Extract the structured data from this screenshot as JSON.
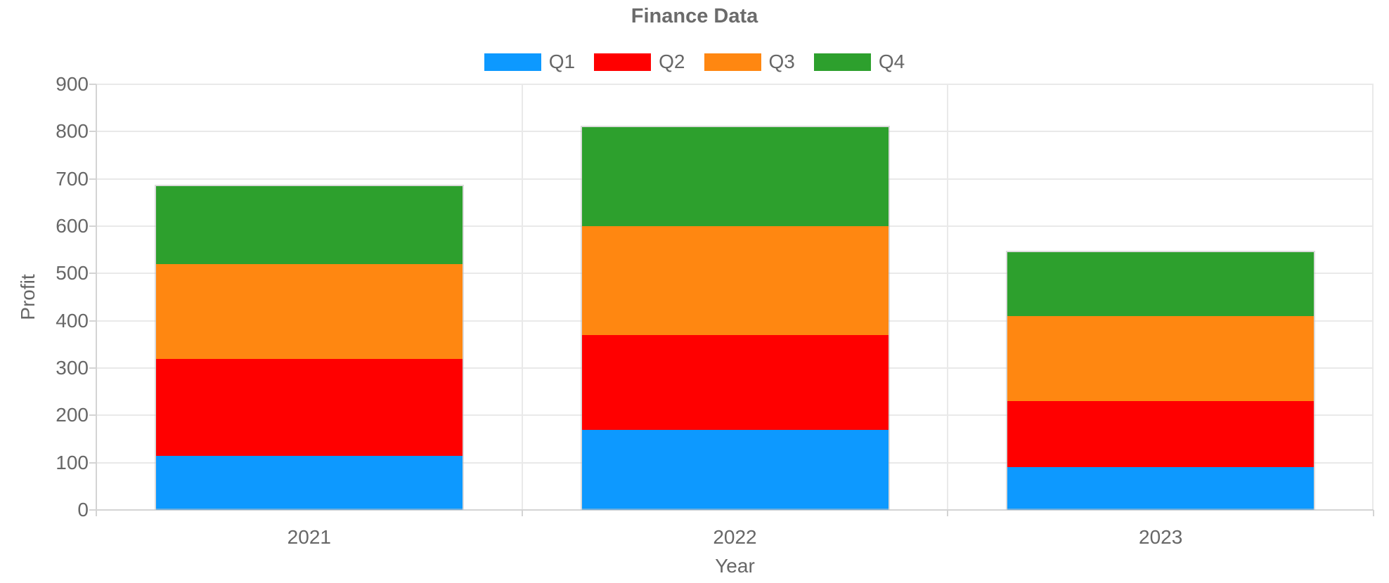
{
  "chart_data": {
    "type": "bar",
    "stacked": true,
    "title": "Finance Data",
    "xlabel": "Year",
    "ylabel": "Profit",
    "categories": [
      "2021",
      "2022",
      "2023"
    ],
    "series": [
      {
        "name": "Q1",
        "color": "#0D99FF",
        "values": [
          115,
          170,
          90
        ]
      },
      {
        "name": "Q2",
        "color": "#FF0000",
        "values": [
          205,
          200,
          140
        ]
      },
      {
        "name": "Q3",
        "color": "#FF8711",
        "values": [
          200,
          230,
          180
        ]
      },
      {
        "name": "Q4",
        "color": "#2DA02D",
        "values": [
          165,
          210,
          135
        ]
      }
    ],
    "stack_totals": [
      685,
      810,
      545
    ],
    "ylim": [
      0,
      900
    ],
    "yticks": [
      0,
      100,
      200,
      300,
      400,
      500,
      600,
      700,
      800,
      900
    ],
    "grid": true,
    "legend_position": "top",
    "text_color": "#676767",
    "grid_color": "#e9e9e9",
    "axis_color": "#d4d4d4"
  }
}
